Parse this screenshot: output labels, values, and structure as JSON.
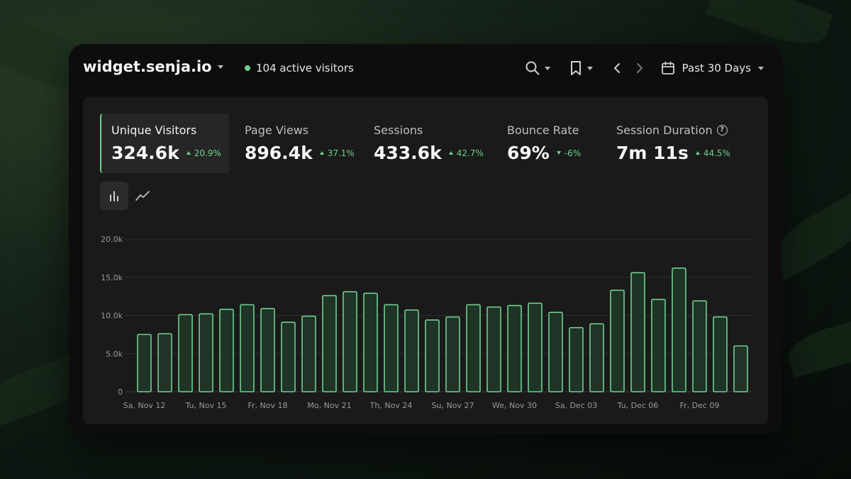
{
  "header": {
    "site_name": "widget.senja.io",
    "active_visitors": "104 active visitors",
    "date_range": "Past 30 Days"
  },
  "metrics": [
    {
      "label": "Unique Visitors",
      "value": "324.6k",
      "delta": "20.9%",
      "trend": "up",
      "active": true
    },
    {
      "label": "Page Views",
      "value": "896.4k",
      "delta": "37.1%",
      "trend": "up"
    },
    {
      "label": "Sessions",
      "value": "433.6k",
      "delta": "42.7%",
      "trend": "up"
    },
    {
      "label": "Bounce Rate",
      "value": "69%",
      "delta": "-6%",
      "trend": "down"
    },
    {
      "label": "Session Duration",
      "value": "7m 11s",
      "delta": "44.5%",
      "trend": "up",
      "help": "?"
    }
  ],
  "colors": {
    "accent": "#6fd08e",
    "bar_fill": "#1f3327",
    "panel": "#1a1a1a",
    "window": "#0d0d0d"
  },
  "icons": [
    "search-icon",
    "bookmark-icon",
    "chevron-left-icon",
    "chevron-right-icon",
    "calendar-icon",
    "bar-chart-icon",
    "line-chart-icon",
    "help-icon"
  ],
  "chart_data": {
    "type": "bar",
    "ylim": [
      0,
      20000
    ],
    "yticks": [
      "0",
      "5.0k",
      "10.0k",
      "15.0k",
      "20.0k"
    ],
    "ytick_values": [
      0,
      5000,
      10000,
      15000,
      20000
    ],
    "x_tick_labels": [
      "Sa, Nov 12",
      "Tu, Nov 15",
      "Fr, Nov 18",
      "Mo, Nov 21",
      "Th, Nov 24",
      "Su, Nov 27",
      "We, Nov 30",
      "Sa, Dec 03",
      "Tu, Dec 06",
      "Fr, Dec 09"
    ],
    "values": [
      7500,
      7600,
      10100,
      10200,
      10800,
      11400,
      10900,
      9100,
      9900,
      12600,
      13100,
      12900,
      11400,
      10700,
      9400,
      9800,
      11400,
      11100,
      11300,
      11600,
      10400,
      8400,
      8900,
      13300,
      15600,
      12100,
      16200,
      11900,
      9800,
      6000
    ],
    "grid": true
  }
}
